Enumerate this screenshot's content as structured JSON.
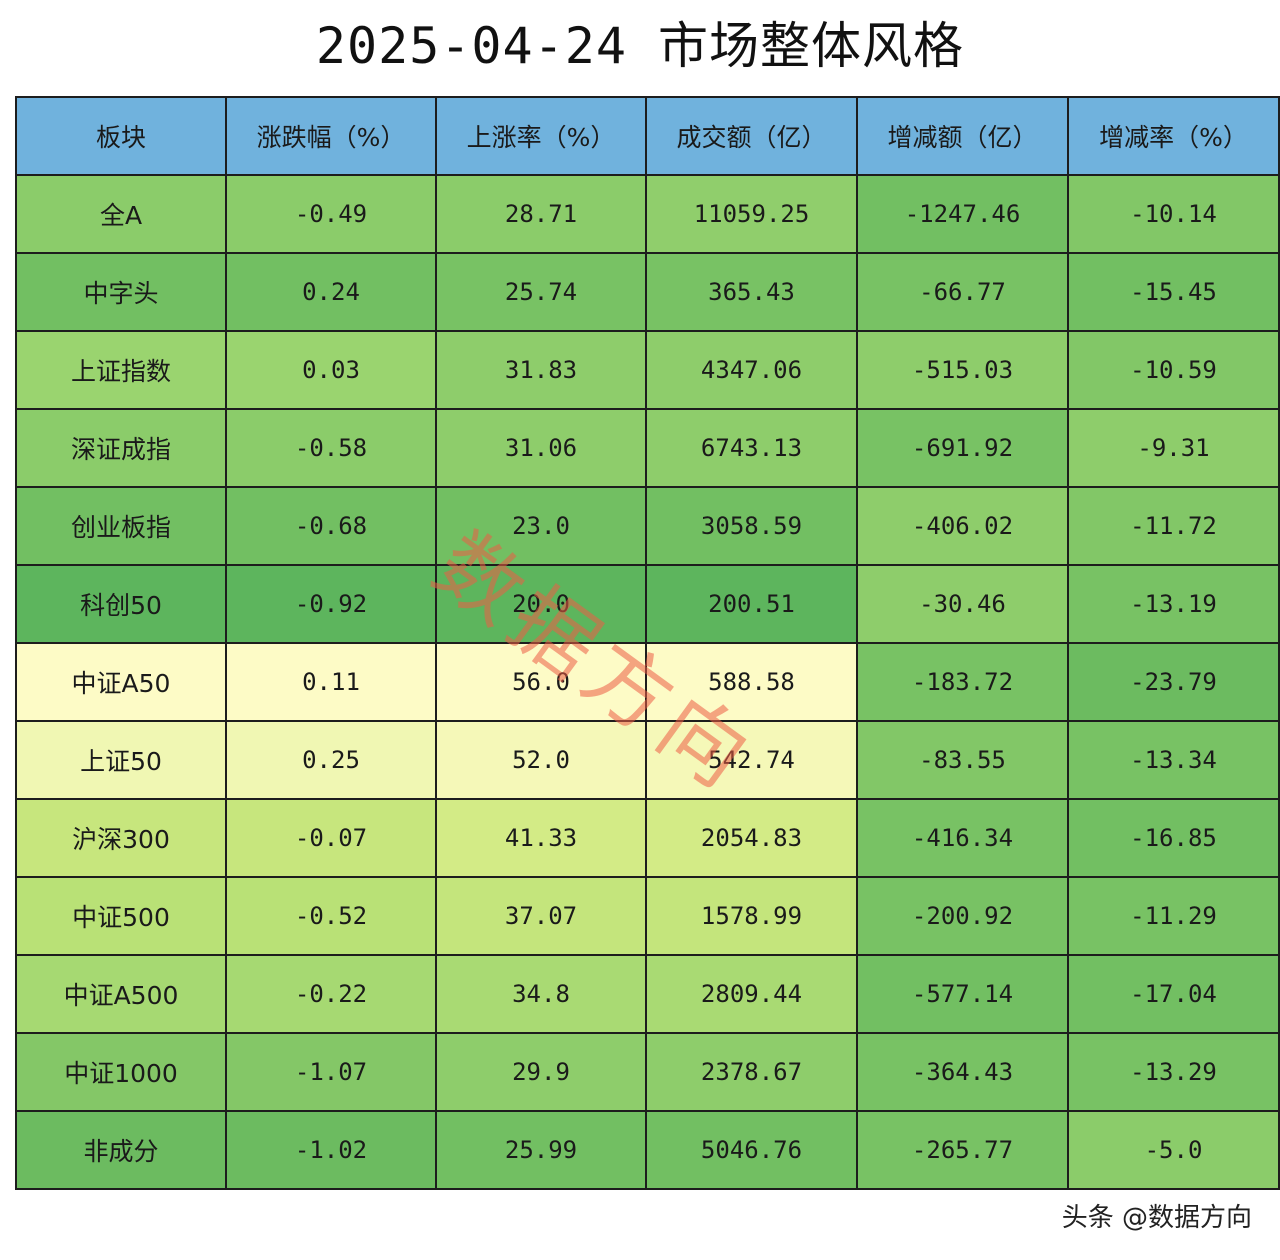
{
  "title": "2025-04-24 市场整体风格",
  "watermark": "数据方向",
  "footer": "头条 @数据方向",
  "colors": {
    "header": "#70b2dd",
    "cell_colors": [
      [
        "#8bcc6a",
        "#8bcc6a",
        "#8bcc6a",
        "#90ce6c",
        "#72bf62",
        "#82c767"
      ],
      [
        "#72bf62",
        "#72bf62",
        "#78c264",
        "#78c264",
        "#78c264",
        "#72bf62"
      ],
      [
        "#9ad46f",
        "#9ad46f",
        "#8ecd6b",
        "#8ecd6b",
        "#8ecd6b",
        "#82c767"
      ],
      [
        "#8bcc6a",
        "#8bcc6a",
        "#8ecd6b",
        "#8ecd6b",
        "#78c264",
        "#8ecd6b"
      ],
      [
        "#72bf62",
        "#72bf62",
        "#72bf62",
        "#72bf62",
        "#8ecd6b",
        "#82c767"
      ],
      [
        "#5db55d",
        "#5db55d",
        "#5db55d",
        "#5db55d",
        "#8ecd6b",
        "#78c264"
      ],
      [
        "#fdfbc6",
        "#fdfbc6",
        "#fdfbc6",
        "#fdfbc6",
        "#78c264",
        "#6cbb60"
      ],
      [
        "#f0f7b3",
        "#f0f7b3",
        "#f5f8b8",
        "#f5f8b8",
        "#82c767",
        "#78c264"
      ],
      [
        "#c7e67d",
        "#c7e67d",
        "#d3eb86",
        "#d3eb86",
        "#78c264",
        "#72bf62"
      ],
      [
        "#b9e176",
        "#b9e176",
        "#c4e57c",
        "#c4e57c",
        "#78c264",
        "#78c264"
      ],
      [
        "#a6d972",
        "#a6d972",
        "#a9da73",
        "#a9da73",
        "#72bf62",
        "#72bf62"
      ],
      [
        "#84c767",
        "#84c767",
        "#8ecd6b",
        "#8ecd6b",
        "#78c264",
        "#78c264"
      ],
      [
        "#6cbb60",
        "#6cbb60",
        "#72bf62",
        "#72bf62",
        "#78c264",
        "#8bcc6a"
      ]
    ]
  },
  "chart_data": {
    "type": "table",
    "title": "2025-04-24 市场整体风格",
    "columns": [
      "板块",
      "涨跌幅（%）",
      "上涨率（%）",
      "成交额（亿）",
      "增减额（亿）",
      "增减率（%）"
    ],
    "rows": [
      [
        "全A",
        "-0.49",
        "28.71",
        "11059.25",
        "-1247.46",
        "-10.14"
      ],
      [
        "中字头",
        "0.24",
        "25.74",
        "365.43",
        "-66.77",
        "-15.45"
      ],
      [
        "上证指数",
        "0.03",
        "31.83",
        "4347.06",
        "-515.03",
        "-10.59"
      ],
      [
        "深证成指",
        "-0.58",
        "31.06",
        "6743.13",
        "-691.92",
        "-9.31"
      ],
      [
        "创业板指",
        "-0.68",
        "23.0",
        "3058.59",
        "-406.02",
        "-11.72"
      ],
      [
        "科创50",
        "-0.92",
        "20.0",
        "200.51",
        "-30.46",
        "-13.19"
      ],
      [
        "中证A50",
        "0.11",
        "56.0",
        "588.58",
        "-183.72",
        "-23.79"
      ],
      [
        "上证50",
        "0.25",
        "52.0",
        "542.74",
        "-83.55",
        "-13.34"
      ],
      [
        "沪深300",
        "-0.07",
        "41.33",
        "2054.83",
        "-416.34",
        "-16.85"
      ],
      [
        "中证500",
        "-0.52",
        "37.07",
        "1578.99",
        "-200.92",
        "-11.29"
      ],
      [
        "中证A500",
        "-0.22",
        "34.8",
        "2809.44",
        "-577.14",
        "-17.04"
      ],
      [
        "中证1000",
        "-1.07",
        "29.9",
        "2378.67",
        "-364.43",
        "-13.29"
      ],
      [
        "非成分",
        "-1.02",
        "25.99",
        "5046.76",
        "-265.77",
        "-5.0"
      ]
    ]
  }
}
